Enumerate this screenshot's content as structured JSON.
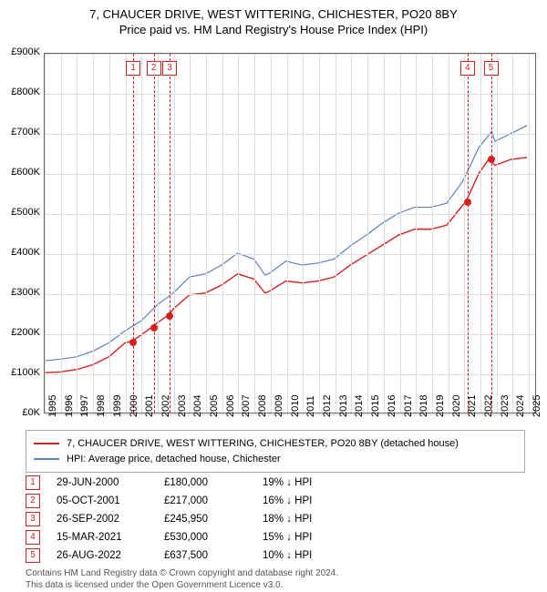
{
  "title": {
    "line1": "7, CHAUCER DRIVE, WEST WITTERING, CHICHESTER, PO20 8BY",
    "line2": "Price paid vs. HM Land Registry's House Price Index (HPI)",
    "fontsize": 13
  },
  "chart": {
    "type": "line",
    "background_color": "#ffffff",
    "grid_color": "#dddddd",
    "border_color": "#666666",
    "x": {
      "min": 1995,
      "max": 2025.5,
      "ticks": [
        1995,
        1996,
        1997,
        1998,
        1999,
        2000,
        2001,
        2002,
        2003,
        2004,
        2005,
        2006,
        2007,
        2008,
        2009,
        2010,
        2011,
        2012,
        2013,
        2014,
        2015,
        2016,
        2017,
        2018,
        2019,
        2020,
        2021,
        2022,
        2023,
        2024,
        2025
      ]
    },
    "y": {
      "min": 0,
      "max": 900,
      "ticks": [
        0,
        100,
        200,
        300,
        400,
        500,
        600,
        700,
        800,
        900
      ],
      "prefix": "£",
      "suffix": "K"
    },
    "series": [
      {
        "name": "property",
        "color": "#d62020",
        "width": 1.4,
        "points": [
          [
            1995,
            100
          ],
          [
            1996,
            102
          ],
          [
            1997,
            108
          ],
          [
            1998,
            120
          ],
          [
            1999,
            140
          ],
          [
            2000,
            175
          ],
          [
            2000.49,
            180
          ],
          [
            2001,
            195
          ],
          [
            2001.76,
            217
          ],
          [
            2002,
            225
          ],
          [
            2002.74,
            246
          ],
          [
            2003,
            260
          ],
          [
            2004,
            295
          ],
          [
            2005,
            300
          ],
          [
            2006,
            320
          ],
          [
            2007,
            348
          ],
          [
            2008,
            335
          ],
          [
            2008.7,
            300
          ],
          [
            2009,
            305
          ],
          [
            2010,
            330
          ],
          [
            2011,
            325
          ],
          [
            2012,
            330
          ],
          [
            2013,
            340
          ],
          [
            2014,
            370
          ],
          [
            2015,
            395
          ],
          [
            2016,
            420
          ],
          [
            2017,
            445
          ],
          [
            2018,
            460
          ],
          [
            2019,
            460
          ],
          [
            2020,
            470
          ],
          [
            2021,
            520
          ],
          [
            2021.2,
            530
          ],
          [
            2022,
            600
          ],
          [
            2022.65,
            637.5
          ],
          [
            2023,
            620
          ],
          [
            2024,
            635
          ],
          [
            2025,
            640
          ]
        ]
      },
      {
        "name": "hpi",
        "color": "#5b7fc7",
        "width": 1.2,
        "points": [
          [
            1995,
            130
          ],
          [
            1996,
            134
          ],
          [
            1997,
            140
          ],
          [
            1998,
            154
          ],
          [
            1999,
            175
          ],
          [
            2000,
            205
          ],
          [
            2001,
            230
          ],
          [
            2002,
            270
          ],
          [
            2003,
            300
          ],
          [
            2004,
            340
          ],
          [
            2005,
            348
          ],
          [
            2006,
            370
          ],
          [
            2007,
            400
          ],
          [
            2008,
            385
          ],
          [
            2008.7,
            345
          ],
          [
            2009,
            350
          ],
          [
            2010,
            380
          ],
          [
            2011,
            370
          ],
          [
            2012,
            375
          ],
          [
            2013,
            385
          ],
          [
            2014,
            418
          ],
          [
            2015,
            445
          ],
          [
            2016,
            475
          ],
          [
            2017,
            500
          ],
          [
            2018,
            515
          ],
          [
            2019,
            515
          ],
          [
            2020,
            525
          ],
          [
            2021,
            580
          ],
          [
            2022,
            665
          ],
          [
            2022.8,
            705
          ],
          [
            2023,
            680
          ],
          [
            2024,
            700
          ],
          [
            2025,
            720
          ]
        ]
      }
    ],
    "transactions": [
      {
        "n": "1",
        "year": 2000.49,
        "value": 180,
        "date": "29-JUN-2000",
        "price": "£180,000",
        "hpi": "19% ↓ HPI"
      },
      {
        "n": "2",
        "year": 2001.76,
        "value": 217,
        "date": "05-OCT-2001",
        "price": "£217,000",
        "hpi": "16% ↓ HPI"
      },
      {
        "n": "3",
        "year": 2002.74,
        "value": 246,
        "date": "26-SEP-2002",
        "price": "£245,950",
        "hpi": "18% ↓ HPI"
      },
      {
        "n": "4",
        "year": 2021.2,
        "value": 530,
        "date": "15-MAR-2021",
        "price": "£530,000",
        "hpi": "15% ↓ HPI"
      },
      {
        "n": "5",
        "year": 2022.65,
        "value": 637.5,
        "date": "26-AUG-2022",
        "price": "£637,500",
        "hpi": "10% ↓ HPI"
      }
    ],
    "event_line_color": "#d62020",
    "event_box_border": "#d62020",
    "event_box_text": "#d62020",
    "marker_color": "#d62020"
  },
  "legend": {
    "items": [
      {
        "color": "#d62020",
        "label": "7, CHAUCER DRIVE, WEST WITTERING, CHICHESTER, PO20 8BY (detached house)"
      },
      {
        "color": "#5b7fc7",
        "label": "HPI: Average price, detached house, Chichester"
      }
    ]
  },
  "footer": {
    "line1": "Contains HM Land Registry data © Crown copyright and database right 2024.",
    "line2": "This data is licensed under the Open Government Licence v3.0."
  }
}
